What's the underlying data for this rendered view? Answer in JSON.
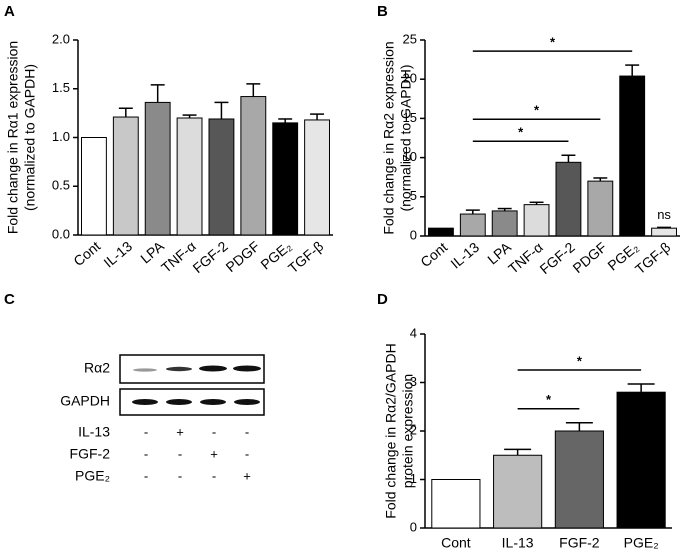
{
  "chart_data": [
    {
      "type": "bar",
      "panel": "A",
      "ylabel": [
        "Fold change in Rα1 expression",
        "(normalized to GAPDH)"
      ],
      "categories": [
        "Cont",
        "IL-13",
        "LPA",
        "TNF-α",
        "FGF-2",
        "PDGF",
        "PGE₂",
        "TGF-β"
      ],
      "values": [
        1.0,
        1.21,
        1.36,
        1.2,
        1.19,
        1.42,
        1.15,
        1.18
      ],
      "errors": [
        0,
        0.09,
        0.18,
        0.03,
        0.17,
        0.13,
        0.04,
        0.06
      ],
      "colors": [
        "#ffffff",
        "#c8c8c8",
        "#8a8a8a",
        "#dcdcdc",
        "#575757",
        "#a8a8a8",
        "#000000",
        "#e6e6e6"
      ],
      "ylim": [
        0,
        2
      ],
      "yticks": [
        {
          "value": 0,
          "label": "0.0"
        },
        {
          "value": 0.5,
          "label": "0.5"
        },
        {
          "value": 1,
          "label": "1.0"
        },
        {
          "value": 1.5,
          "label": "1.5"
        },
        {
          "value": 2,
          "label": "2.0"
        }
      ],
      "annotations": []
    },
    {
      "type": "bar",
      "panel": "B",
      "ylabel": [
        "Fold change in Rα2 expression",
        "(normalized to GAPDH)"
      ],
      "categories": [
        "Cont",
        "IL-13",
        "LPA",
        "TNF-α",
        "FGF-2",
        "PDGF",
        "PGE₂",
        "TGF-β"
      ],
      "values": [
        1.0,
        2.8,
        3.2,
        4.0,
        9.4,
        7.0,
        20.4,
        1.0
      ],
      "errors": [
        0,
        0.5,
        0.3,
        0.3,
        0.9,
        0.4,
        1.4,
        0.1
      ],
      "colors": [
        "#000000",
        "#a8a8a8",
        "#8a8a8a",
        "#dcdcdc",
        "#575757",
        "#a8a8a8",
        "#000000",
        "#e6e6e6"
      ],
      "ylim": [
        0,
        25
      ],
      "yticks": [
        0,
        5,
        10,
        15,
        20,
        25
      ],
      "annotations": [
        {
          "text": "*",
          "from": "IL-13",
          "to": "FGF-2"
        },
        {
          "text": "*",
          "from": "IL-13",
          "to": "PDGF"
        },
        {
          "text": "*",
          "from": "IL-13",
          "to": "PGE₂"
        },
        {
          "text": "ns",
          "from": "TGF-β",
          "to": "TGF-β"
        }
      ]
    },
    {
      "type": "bar",
      "panel": "D",
      "ylabel": [
        "Fold change in Rα2/GAPDH",
        "protein expression"
      ],
      "categories": [
        "Cont",
        "IL-13",
        "FGF-2",
        "PGE₂"
      ],
      "values": [
        1.0,
        1.5,
        2.0,
        2.8
      ],
      "errors": [
        0,
        0.12,
        0.17,
        0.17
      ],
      "colors": [
        "#ffffff",
        "#bdbdbd",
        "#666666",
        "#000000"
      ],
      "ylim": [
        0,
        4
      ],
      "yticks": [
        0,
        1,
        2,
        3,
        4
      ],
      "annotations": [
        {
          "text": "*",
          "from": "IL-13",
          "to": "FGF-2"
        },
        {
          "text": "*",
          "from": "IL-13",
          "to": "PGE₂"
        }
      ]
    }
  ],
  "blot": {
    "panel": "C",
    "bands": [
      "Rα2",
      "GAPDH"
    ],
    "conditions": [
      {
        "label": "IL-13",
        "signs": [
          "-",
          "+",
          "-",
          "-"
        ]
      },
      {
        "label": "FGF-2",
        "signs": [
          "-",
          "-",
          "+",
          "-"
        ]
      },
      {
        "label": "PGE₂",
        "signs": [
          "-",
          "-",
          "-",
          "+"
        ]
      }
    ]
  }
}
